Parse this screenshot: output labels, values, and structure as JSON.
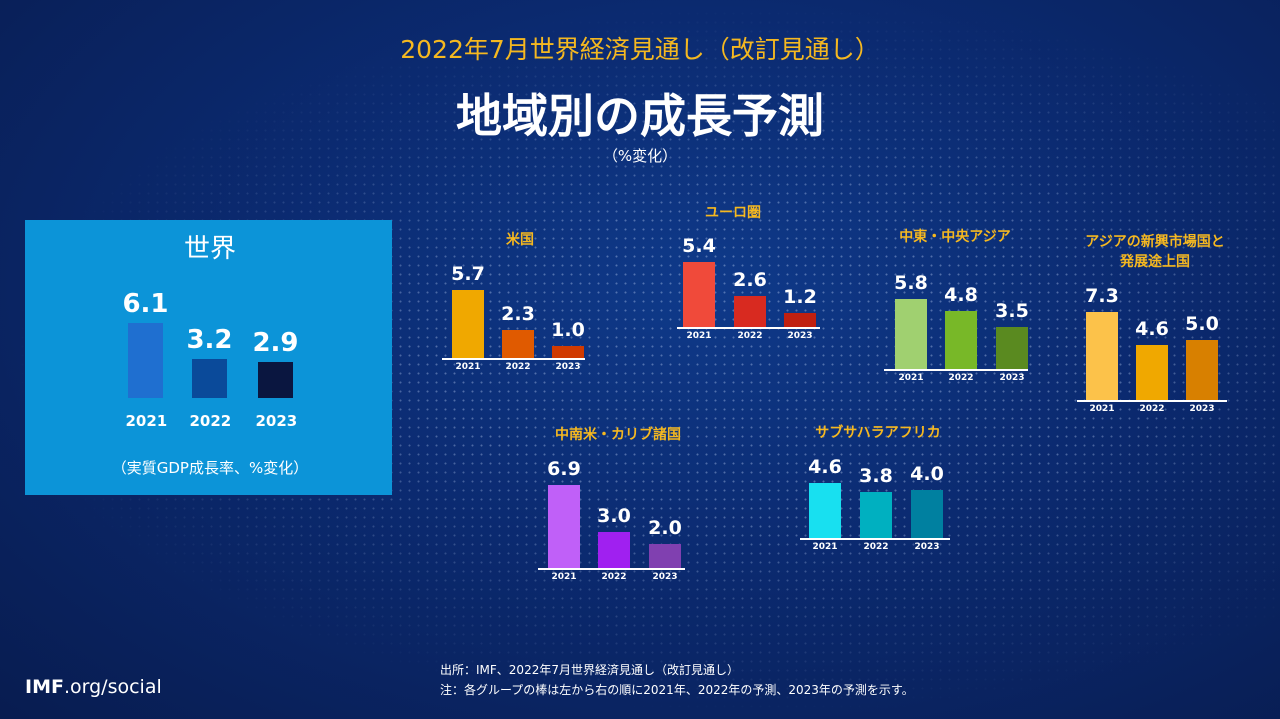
{
  "header": {
    "subtitle": "2022年7月世界経済見通し（改訂見通し）",
    "title": "地域別の成長予測",
    "unit": "（%変化）"
  },
  "chart_data": {
    "type": "bar",
    "title": "地域別の成長予測",
    "categories": [
      "2021",
      "2022",
      "2023"
    ],
    "groups": [
      {
        "id": "world",
        "name": "世界",
        "values": [
          6.1,
          3.2,
          2.9
        ],
        "colors": [
          "#1f6fd0",
          "#0a4a9a",
          "#0a1640"
        ],
        "note": "（実質GDP成長率、%変化）"
      },
      {
        "id": "us",
        "name": "米国",
        "values": [
          5.7,
          2.3,
          1.0
        ],
        "colors": [
          "#f0a800",
          "#e05a00",
          "#d03a00"
        ]
      },
      {
        "id": "euro",
        "name": "ユーロ圏",
        "values": [
          5.4,
          2.6,
          1.2
        ],
        "colors": [
          "#f04a3a",
          "#d82a20",
          "#c02010"
        ]
      },
      {
        "id": "me",
        "name": "中東・中央アジア",
        "values": [
          5.8,
          4.8,
          3.5
        ],
        "colors": [
          "#a0d070",
          "#78b828",
          "#5a8a20"
        ]
      },
      {
        "id": "asia",
        "name": "アジアの新興市場国と\n発展途上国",
        "values": [
          7.3,
          4.6,
          5.0
        ],
        "colors": [
          "#fcc24a",
          "#f0a800",
          "#d88000"
        ]
      },
      {
        "id": "latam",
        "name": "中南米・カリブ諸国",
        "values": [
          6.9,
          3.0,
          2.0
        ],
        "colors": [
          "#c060f8",
          "#a020f0",
          "#8040b0"
        ]
      },
      {
        "id": "ssa",
        "name": "サブサハラアフリカ",
        "values": [
          4.6,
          3.8,
          4.0
        ],
        "colors": [
          "#18e0f0",
          "#00b0c0",
          "#0080a0"
        ]
      }
    ]
  },
  "footer": {
    "source": "出所：IMF、2022年7月世界経済見通し（改訂見通し）",
    "note": "注：各グループの棒は左から右の順に2021年、2022年の予測、2023年の予測を示す。",
    "logo_bold": "IMF",
    "logo_rest": ".org/social"
  }
}
